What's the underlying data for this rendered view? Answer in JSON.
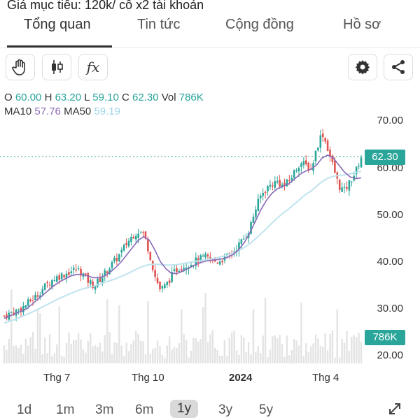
{
  "caption": "Giá mục tiêu: 120k/ cô x2 tài khoản",
  "tabs": [
    {
      "label": "Tổng quan"
    },
    {
      "label": "Tin tức"
    },
    {
      "label": "Cộng đồng"
    },
    {
      "label": "Hồ sơ"
    }
  ],
  "toolbar": {
    "icons": [
      "hand-icon",
      "candlestick-icon",
      "function-icon",
      "gear-icon",
      "share-icon"
    ],
    "fx_label": "fx"
  },
  "ohlc": {
    "o_label": "O",
    "o_value": "60.00",
    "h_label": "H",
    "h_value": "63.20",
    "l_label": "L",
    "l_value": "59.10",
    "c_label": "C",
    "c_value": "62.30",
    "vol_label": "Vol",
    "vol_value": "786K"
  },
  "ma": {
    "ma10_label": "MA10",
    "ma10_value": "57.76",
    "ma50_label": "MA50",
    "ma50_value": "59.19"
  },
  "colors": {
    "up": "#2aa59a",
    "down": "#e0534f",
    "ma10": "#8a6ab8",
    "ma50": "#bfe3ef",
    "volume": "#e3e3e3"
  },
  "chart_data": {
    "type": "candlestick",
    "price_axis_ticks": [
      "70.00",
      "60.00",
      "50.00",
      "40.00",
      "30.00",
      "20.00"
    ],
    "ylim": [
      20,
      70
    ],
    "current_price": "62.30",
    "current_volume": "786K",
    "x_tick_labels": [
      "Thg 7",
      "Thg 10",
      "2024",
      "Thg 4"
    ],
    "close_trend": [
      28.5,
      29,
      29.5,
      30,
      31,
      32,
      33,
      34.5,
      35.5,
      36.5,
      37,
      37.5,
      38,
      38.5,
      37.5,
      36,
      35,
      36,
      37.5,
      39,
      40.5,
      42,
      44,
      45.5,
      46.5,
      46,
      42,
      37,
      34,
      35,
      37,
      38.5,
      39,
      39.5,
      40,
      40.5,
      41,
      40.5,
      40,
      40.5,
      41,
      42,
      43.5,
      45,
      47,
      51,
      54,
      55.5,
      56.5,
      57,
      56,
      57,
      59,
      61,
      60.5,
      59.5,
      64,
      67.5,
      64,
      60,
      56,
      55,
      57,
      59,
      62.3
    ],
    "ma10": [
      28,
      28.5,
      29,
      29.5,
      30,
      31,
      32,
      33,
      34,
      35,
      35.8,
      36.4,
      37,
      37.3,
      37.3,
      37,
      36.6,
      36.6,
      37,
      37.8,
      38.8,
      40,
      41.5,
      43,
      44.5,
      45.3,
      44.6,
      42.5,
      40,
      38.5,
      37.5,
      37.5,
      38,
      38.6,
      39.2,
      39.7,
      40.1,
      40.3,
      40.4,
      40.6,
      40.9,
      41.5,
      42.5,
      44,
      46,
      48.5,
      51,
      53,
      54.5,
      55.5,
      56,
      56.5,
      57.5,
      58.5,
      59.2,
      59.6,
      60.5,
      62,
      62.6,
      62,
      60.5,
      59,
      58,
      57.6,
      57.8
    ],
    "ma50": [
      27,
      27.4,
      27.8,
      28.3,
      28.8,
      29.3,
      29.9,
      30.5,
      31.1,
      31.7,
      32.3,
      32.8,
      33.3,
      33.8,
      34.2,
      34.5,
      34.8,
      35.2,
      35.6,
      36,
      36.4,
      36.9,
      37.4,
      38,
      38.6,
      39.1,
      39.4,
      39.5,
      39.4,
      39.3,
      39.3,
      39.4,
      39.6,
      39.8,
      40,
      40.2,
      40.4,
      40.6,
      40.8,
      41.1,
      41.4,
      41.8,
      42.3,
      43,
      43.8,
      44.8,
      45.9,
      47,
      48.2,
      49.3,
      50.3,
      51.2,
      52.2,
      53.2,
      54.2,
      55,
      56,
      57,
      57.7,
      58.1,
      58.3,
      58.4,
      58.6,
      58.9,
      59.19
    ]
  },
  "range_options": [
    {
      "label": "1d"
    },
    {
      "label": "1m"
    },
    {
      "label": "3m"
    },
    {
      "label": "6m"
    },
    {
      "label": "1y",
      "active": true
    },
    {
      "label": "3y"
    },
    {
      "label": "5y"
    }
  ],
  "expand_icon": "expand-icon"
}
